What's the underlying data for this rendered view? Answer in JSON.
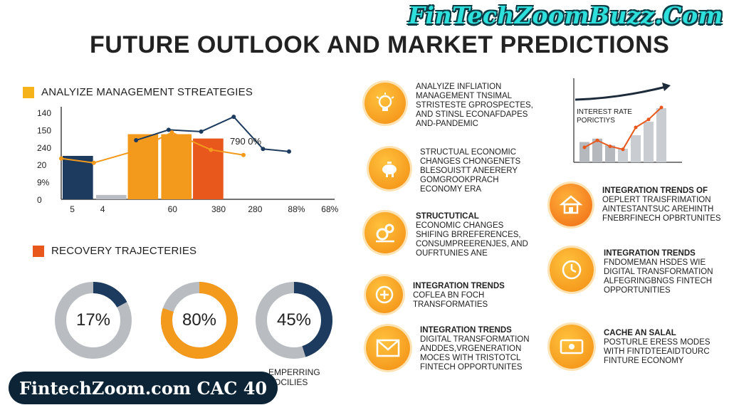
{
  "watermark": "FinTechZoomBuzz.Com",
  "title": "FUTURE OUTLOOK AND MARKET PREDICTIONS",
  "colors": {
    "orange": "#f39a1c",
    "darkOrange": "#e8581d",
    "navy": "#1c3b5e",
    "gray": "#b9bdc2",
    "cyan": "#2de0dc"
  },
  "strategies_section": {
    "legend_label": "ANALYIZE MANAGEMENT STREATEGIES",
    "annotation": "790 0%"
  },
  "recovery_section": {
    "legend_label": "RECOVERY TRAJECTERIES",
    "donuts": [
      {
        "label": "17%",
        "value": 17,
        "color": "#1c3b5e",
        "caption": ""
      },
      {
        "label": "80%",
        "value": 80,
        "color": "#f39a1c",
        "caption": ""
      },
      {
        "label": "45%",
        "value": 45,
        "color": "#1c3b5e",
        "caption": "EMPERRING\nPOCILIES"
      }
    ]
  },
  "chart_data": [
    {
      "type": "bar",
      "title": "ANALYIZE MANAGEMENT STREATEGIES",
      "categories": [
        "5",
        "4",
        "60",
        "380",
        "280",
        "88%",
        "68%"
      ],
      "y_tick_labels": [
        "0",
        "9%",
        "20",
        "240",
        "150",
        "140"
      ],
      "series": [
        {
          "values": [
            5,
            0.5,
            7.5,
            7.5,
            7,
            0,
            0
          ]
        }
      ],
      "lines": [
        {
          "color": "navy",
          "points": [
            [
              3.3,
              6.8
            ],
            [
              4.3,
              8
            ],
            [
              5.3,
              7.8
            ],
            [
              6.3,
              9.5
            ],
            [
              7.2,
              5.8
            ],
            [
              8,
              5.5
            ]
          ]
        },
        {
          "color": "orange",
          "points": [
            [
              1,
              4.7
            ],
            [
              2,
              4.2
            ],
            [
              3.2,
              5.5
            ],
            [
              4.4,
              7.7
            ],
            [
              5.6,
              5.7
            ],
            [
              6.6,
              5.1
            ]
          ]
        }
      ]
    },
    {
      "type": "bar",
      "title": "INTEREST RATE PORICTIYS",
      "values": [
        3,
        3.5,
        2.5,
        2,
        4,
        6,
        8
      ],
      "trend": [
        1.5,
        2.2,
        1.6,
        1.3,
        3.5,
        4.3,
        5.5
      ]
    }
  ],
  "features_left": [
    {
      "icon": "lightbulb-icon",
      "lines": [
        "ANALYIZE INFLIATION",
        "MANAGEMENT TNSIMAL",
        "STRISTESTE GPROSPECTES,",
        "AND STINSL ECONAFDAPES",
        "AND-PANDEMIC"
      ]
    },
    {
      "icon": "piggy-bank-icon",
      "lines": [
        "STRUCTUAL ECONOMIC",
        "CHANGES CHONGENETS",
        "BLESOUISTT ANEERERY",
        "GOMGROOKPRACH",
        "ECONOMY ERA"
      ]
    },
    {
      "icon": "gears-icon",
      "lines": [
        "STRUCTUTICAL",
        "ECONOMIC CHANGES",
        "SHIFING BRREFERENCES,",
        "CONSUMPREERENJES, AND",
        "OUFRTUNIES ANE"
      ]
    },
    {
      "icon": "plus-icon",
      "lines": [
        "INTEGRATION TRENDS",
        "COFLEA BN FOCH",
        "TRANSFORMATIES"
      ]
    },
    {
      "icon": "envelope-icon",
      "lines": [
        "INTEGRATION TRENDS",
        "DIGITAL TRANSFORMATION",
        "ANDDES,VRGENERATION",
        "MOCES WITH TRISTOTCL",
        "FINTECH OPPORTUNITES"
      ]
    }
  ],
  "features_right": [
    {
      "icon": "house-icon",
      "lines": [
        "INTEGRATION TRENDS OF",
        "OEPLERT TRAISFRIMATION",
        "AINTESTANTSUC AREHINTH",
        "FNEBRFINECH OPBRTUNITES"
      ]
    },
    {
      "icon": "clock-icon",
      "lines": [
        "INTEGRATION TRENDS",
        "FNDOMEMAN HSDES WIE",
        "DIGITAL TRANSFORMATION",
        "ALFEGRINGBNGS FINTECH",
        "OPPORTUNITIES"
      ]
    },
    {
      "icon": "money-icon",
      "lines": [
        "CACHE AN SALAL",
        "POSTURLE ERESS MODES",
        "WITH FINTDTEEAIDTOURC",
        "FINTURE ECONOMY"
      ]
    }
  ],
  "banner": "FintechZoom.com CAC 40"
}
